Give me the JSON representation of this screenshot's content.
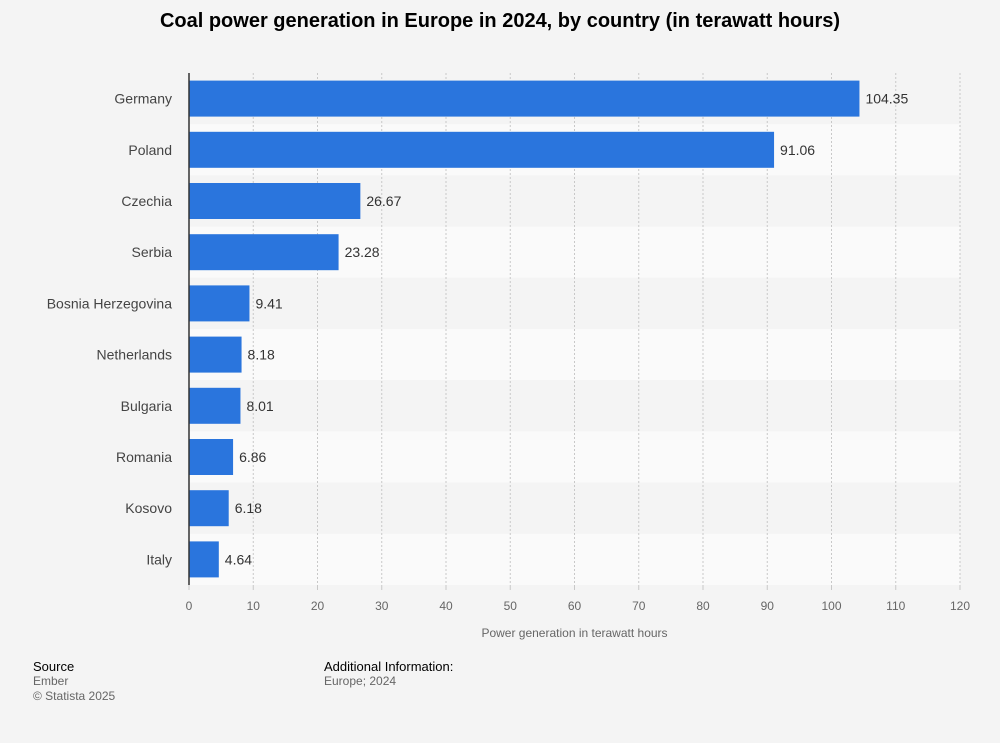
{
  "chart_data": {
    "type": "bar",
    "orientation": "horizontal",
    "title": "Coal power generation in Europe in 2024, by country (in terawatt hours)",
    "xlabel": "Power generation in terawatt hours",
    "ylabel": "",
    "categories": [
      "Germany",
      "Poland",
      "Czechia",
      "Serbia",
      "Bosnia Herzegovina",
      "Netherlands",
      "Bulgaria",
      "Romania",
      "Kosovo",
      "Italy"
    ],
    "values": [
      104.35,
      91.06,
      26.67,
      23.28,
      9.41,
      8.18,
      8.01,
      6.86,
      6.18,
      4.64
    ],
    "value_labels": [
      "104.35",
      "91.06",
      "26.67",
      "23.28",
      "9.41",
      "8.18",
      "8.01",
      "6.86",
      "6.18",
      "4.64"
    ],
    "xlim": [
      0,
      120
    ],
    "xticks": [
      0,
      10,
      20,
      30,
      40,
      50,
      60,
      70,
      80,
      90,
      100,
      110,
      120
    ],
    "grid": true,
    "bar_color": "#2a75dd",
    "band_colors": [
      "#f4f4f4",
      "#fafafa"
    ]
  },
  "footer": {
    "source_heading": "Source",
    "source_name": "Ember",
    "copyright": "© Statista 2025",
    "additional_heading": "Additional Information:",
    "additional_text": "Europe; 2024"
  }
}
